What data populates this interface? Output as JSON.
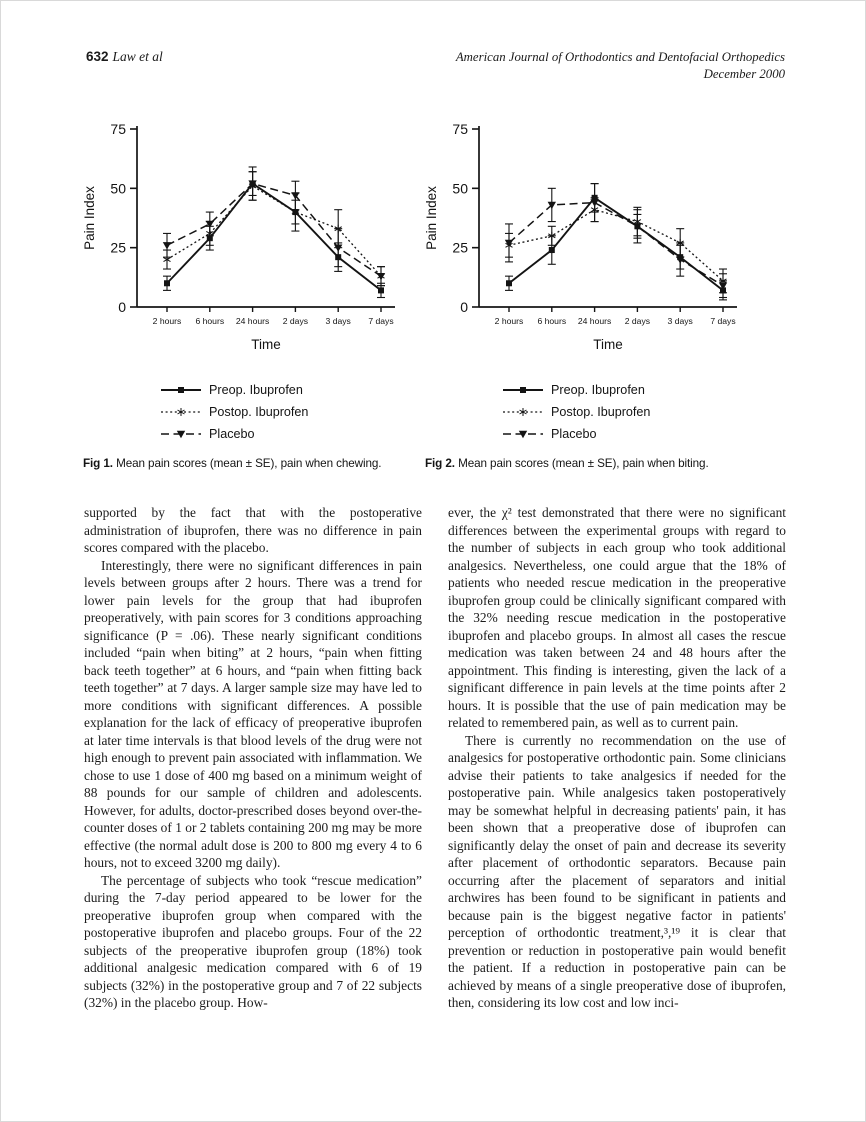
{
  "header": {
    "page_number": "632",
    "authors": "Law et al",
    "journal_line1": "American Journal of Orthodontics and Dentofacial Orthopedics",
    "journal_line2": "December 2000"
  },
  "figures": [
    {
      "caption_label": "Fig 1.",
      "caption_text": "Mean pain scores (mean ± SE), pain when chewing."
    },
    {
      "caption_label": "Fig 2.",
      "caption_text": "Mean pain scores (mean ± SE), pain when biting."
    }
  ],
  "chart_data": [
    {
      "type": "line",
      "title": "Mean pain scores (mean ± SE), pain when chewing",
      "xlabel": "Time",
      "ylabel": "Pain Index",
      "ylim": [
        0,
        75
      ],
      "yticks": [
        0,
        25,
        50,
        75
      ],
      "categories": [
        "2 hours",
        "6 hours",
        "24 hours",
        "2 days",
        "3 days",
        "7 days"
      ],
      "grid": false,
      "legend_position": "below",
      "series": [
        {
          "name": "Preop. Ibuprofen",
          "style": "solid",
          "marker": "square",
          "values": [
            10,
            29,
            52,
            40,
            21,
            7
          ],
          "errors": [
            3,
            5,
            5,
            8,
            6,
            3
          ]
        },
        {
          "name": "Postop. Ibuprofen",
          "style": "dotted",
          "marker": "asterisk",
          "values": [
            20,
            31,
            51,
            40,
            33,
            13
          ],
          "errors": [
            4,
            5,
            6,
            5,
            8,
            4
          ]
        },
        {
          "name": "Placebo",
          "style": "dashed",
          "marker": "triangle",
          "values": [
            26,
            35,
            52,
            47,
            25,
            13
          ],
          "errors": [
            5,
            5,
            7,
            6,
            8,
            4
          ]
        }
      ]
    },
    {
      "type": "line",
      "title": "Mean pain scores (mean ± SE), pain when biting",
      "xlabel": "Time",
      "ylabel": "Pain Index",
      "ylim": [
        0,
        75
      ],
      "yticks": [
        0,
        25,
        50,
        75
      ],
      "categories": [
        "2 hours",
        "6 hours",
        "24 hours",
        "2 days",
        "3 days",
        "7 days"
      ],
      "grid": false,
      "legend_position": "below",
      "series": [
        {
          "name": "Preop. Ibuprofen",
          "style": "solid",
          "marker": "square",
          "values": [
            10,
            24,
            46,
            34,
            21,
            7
          ],
          "errors": [
            3,
            6,
            6,
            5,
            5,
            4
          ]
        },
        {
          "name": "Postop. Ibuprofen",
          "style": "dotted",
          "marker": "asterisk",
          "values": [
            26,
            30,
            41,
            36,
            27,
            11
          ],
          "errors": [
            5,
            4,
            5,
            6,
            6,
            5
          ]
        },
        {
          "name": "Placebo",
          "style": "dashed",
          "marker": "triangle",
          "values": [
            27,
            43,
            44,
            34,
            20,
            9
          ],
          "errors": [
            8,
            7,
            8,
            7,
            7,
            5
          ]
        }
      ]
    }
  ],
  "body": {
    "columns": [
      {
        "paragraphs": [
          {
            "indent": false,
            "text": "supported by the fact that with the postoperative administration of ibuprofen, there was no difference in pain scores compared with the placebo."
          },
          {
            "indent": true,
            "text": "Interestingly, there were no significant differences in pain levels between groups after 2 hours. There was a trend for lower pain levels for the group that had ibuprofen preoperatively, with pain scores for 3 conditions approaching significance (P = .06). These nearly significant conditions included “pain when biting” at 2 hours, “pain when fitting back teeth together” at 6 hours, and “pain when fitting back teeth together” at 7 days. A larger sample size may have led to more conditions with significant differences. A possible explanation for the lack of efficacy of preoperative ibuprofen at later time intervals is that blood levels of the drug were not high enough to prevent pain associated with inflammation. We chose to use 1 dose of 400 mg based on a minimum weight of 88 pounds for our sample of children and adolescents. However, for adults, doctor-prescribed doses beyond over-the-counter doses of 1 or 2 tablets containing 200 mg may be more effective (the normal adult dose is 200 to 800 mg every 4 to 6 hours, not to exceed 3200 mg daily)."
          },
          {
            "indent": true,
            "text": "The percentage of subjects who took “rescue medication” during the 7-day period appeared to be lower for the preoperative ibuprofen group when compared with the postoperative ibuprofen and placebo groups. Four of the 22 subjects of the preoperative ibuprofen group (18%) took additional analgesic medication compared with 6 of 19 subjects (32%) in the postoperative group and 7 of 22 subjects (32%) in the placebo group. How-"
          }
        ]
      },
      {
        "paragraphs": [
          {
            "indent": false,
            "text": "ever, the χ² test demonstrated that there were no significant differences between the experimental groups with regard to the number of subjects in each group who took additional analgesics. Nevertheless, one could argue that the 18% of patients who needed rescue medication in the preoperative ibuprofen group could be clinically significant compared with the 32% needing rescue medication in the postoperative ibuprofen and placebo groups. In almost all cases the rescue medication was taken between 24 and 48 hours after the appointment. This finding is interesting, given the lack of a significant difference in pain levels at the time points after 2 hours. It is possible that the use of pain medication may be related to remembered pain, as well as to current pain."
          },
          {
            "indent": true,
            "text": "There is currently no recommendation on the use of analgesics for postoperative orthodontic pain. Some clinicians advise their patients to take analgesics if needed for the postoperative pain. While analgesics taken postoperatively may be somewhat helpful in decreasing patients' pain, it has been shown that a preoperative dose of ibuprofen can significantly delay the onset of pain and decrease its severity after placement of orthodontic separators. Because pain occurring after the placement of separators and initial archwires has been found to be significant in patients and because pain is the biggest negative factor in patients' perception of orthodontic treatment,³,¹⁹ it is clear that prevention or reduction in postoperative pain would benefit the patient. If a reduction in postoperative pain can be achieved by means of a single preoperative dose of ibuprofen, then, considering its low cost and low inci-"
          }
        ]
      }
    ]
  }
}
